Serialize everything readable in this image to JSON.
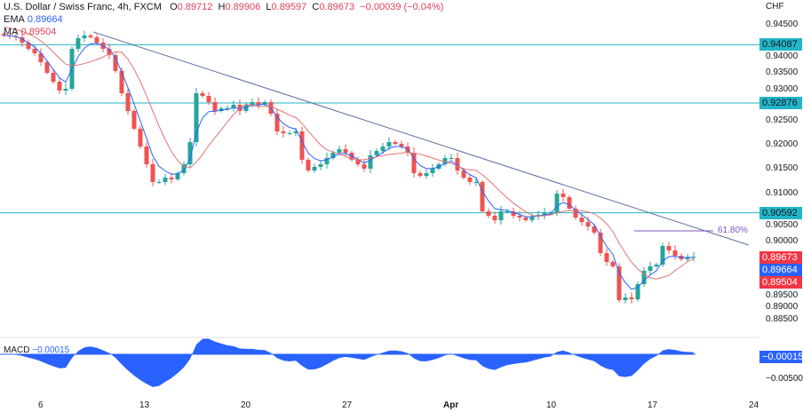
{
  "header": {
    "symbol": "U.S. Dollar / Swiss Franc",
    "interval": "4h",
    "source": "FXCM",
    "o_label": "O",
    "open": "0.89712",
    "h_label": "H",
    "high": "0.89906",
    "l_label": "L",
    "low": "0.89597",
    "c_label": "C",
    "close": "0.89673",
    "change": "−0.00039 (−0.04%)"
  },
  "indicators": {
    "ema_label": "EMA",
    "ema_value": "0.89664",
    "ma_label": "MA",
    "ma_value": "0.89504",
    "macd_label": "MACD",
    "macd_value": "−0.00015"
  },
  "axis": {
    "currency": "CHF",
    "badges": {
      "last": "0.89673",
      "ema": "0.89664",
      "ma": "0.89504",
      "macd": "−0.00015",
      "macd_tick": "−0.00500"
    }
  },
  "levels": [
    {
      "price": 0.94087,
      "label": "0.94087"
    },
    {
      "price": 0.92876,
      "label": "0.92876"
    },
    {
      "price": 0.90592,
      "label": "0.90592"
    }
  ],
  "fib": {
    "label": "61.80%"
  },
  "colors": {
    "up": "#26a69a",
    "down": "#ef5350",
    "ema": "#2962ff",
    "ma": "#e57373",
    "level": "#22b5c7",
    "trend": "#5b6fa0",
    "macd": "#2962ff",
    "badge_red": "#f23645",
    "badge_blue": "#2962ff",
    "level_badge": "#22b5c7"
  },
  "chart_data": {
    "type": "candlestick",
    "ylim": [
      0.8825,
      0.9475
    ],
    "yticks": [
      "0.94500",
      "0.94000",
      "0.93500",
      "0.93000",
      "0.92500",
      "0.92000",
      "0.91500",
      "0.91000",
      "0.90500",
      "0.90000",
      "0.89500",
      "0.89000",
      "0.88500"
    ],
    "xticks": [
      "6",
      "13",
      "20",
      "27",
      "Apr",
      "10",
      "17",
      "24"
    ],
    "close": [
      0.94278,
      0.9426,
      0.94242,
      0.94131,
      0.94001,
      0.93909,
      0.93725,
      0.93503,
      0.93318,
      0.93134,
      0.93171,
      0.94001,
      0.94223,
      0.94278,
      0.94242,
      0.94131,
      0.94001,
      0.93872,
      0.9354,
      0.93078,
      0.92709,
      0.9234,
      0.9197,
      0.91601,
      0.91232,
      0.91232,
      0.91324,
      0.91287,
      0.91416,
      0.91601,
      0.92063,
      0.93078,
      0.93022,
      0.92894,
      0.92709,
      0.92765,
      0.92765,
      0.92838,
      0.92709,
      0.92838,
      0.92894,
      0.92838,
      0.92894,
      0.92654,
      0.92284,
      0.92247,
      0.92247,
      0.92284,
      0.91694,
      0.91472,
      0.91546,
      0.91601,
      0.91731,
      0.91841,
      0.91915,
      0.91841,
      0.91694,
      0.91601,
      0.91509,
      0.91786,
      0.91878,
      0.9197,
      0.92063,
      0.92026,
      0.9197,
      0.91841,
      0.91417,
      0.91361,
      0.91417,
      0.91509,
      0.91601,
      0.91731,
      0.91731,
      0.91472,
      0.91324,
      0.91232,
      0.91232,
      0.90622,
      0.9053,
      0.90438,
      0.90622,
      0.90622,
      0.9053,
      0.90493,
      0.90438,
      0.90512,
      0.90549,
      0.90586,
      0.90586,
      0.90992,
      0.90918,
      0.90678,
      0.90493,
      0.90401,
      0.90309,
      0.9018,
      0.89755,
      0.8957,
      0.89478,
      0.88776,
      0.88831,
      0.88794,
      0.89109,
      0.89386,
      0.89478,
      0.89515,
      0.89902,
      0.8981,
      0.89699,
      0.89626,
      0.89663,
      0.89673
    ]
  }
}
